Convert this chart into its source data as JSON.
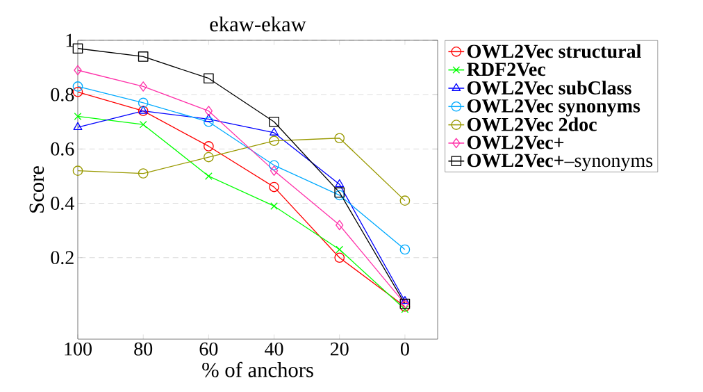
{
  "chart_data": {
    "type": "line",
    "title": "ekaw-ekaw",
    "xlabel": "% of anchors",
    "ylabel": "Score",
    "x": [
      100,
      80,
      60,
      40,
      20,
      0
    ],
    "series": [
      {
        "name": "**OWL2Vec structural**",
        "color": "#ff0000",
        "marker": "circle",
        "values": [
          0.81,
          0.74,
          0.61,
          0.46,
          0.2,
          0.02
        ]
      },
      {
        "name": "**RDF2Vec**",
        "color": "#00ff00",
        "marker": "cross",
        "values": [
          0.72,
          0.69,
          0.5,
          0.39,
          0.23,
          0.01
        ]
      },
      {
        "name": "**OWL2Vec subClass**",
        "color": "#0000ff",
        "marker": "triangle",
        "values": [
          0.68,
          0.74,
          0.71,
          0.66,
          0.47,
          0.04
        ]
      },
      {
        "name": "**OWL2Vec synonyms**",
        "color": "#00aaff",
        "marker": "circle",
        "values": [
          0.83,
          0.77,
          0.7,
          0.54,
          0.43,
          0.23
        ]
      },
      {
        "name": "**OWL2Vec 2doc**",
        "color": "#999900",
        "marker": "circle",
        "values": [
          0.52,
          0.51,
          0.57,
          0.63,
          0.64,
          0.41
        ]
      },
      {
        "name": "**OWL2Vec+**",
        "color": "#ff33aa",
        "marker": "diamond",
        "values": [
          0.89,
          0.83,
          0.74,
          0.52,
          0.32,
          0.03
        ]
      },
      {
        "name": "**OWL2Vec+**–synonyms",
        "color": "#000000",
        "marker": "square",
        "values": [
          0.97,
          0.94,
          0.86,
          0.7,
          0.44,
          0.03
        ]
      }
    ],
    "xlim": [
      100,
      -10
    ],
    "ylim": [
      -0.1,
      1
    ],
    "xticks": [
      100,
      80,
      60,
      40,
      20,
      0
    ],
    "yticks": [
      0.2,
      0.4,
      0.6,
      0.8,
      1
    ],
    "grid": "y",
    "legend": "top right",
    "line_style": "solid"
  }
}
